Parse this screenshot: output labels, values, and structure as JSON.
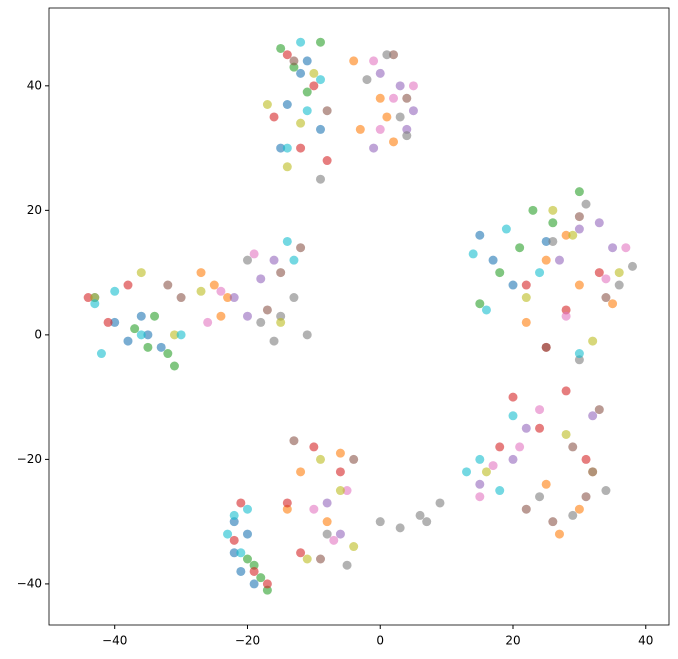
{
  "chart_data": {
    "type": "scatter",
    "xlim": [
      -49.9,
      43.5
    ],
    "ylim": [
      -46.6,
      52.5
    ],
    "xticks": [
      {
        "value": -40,
        "label": "−40"
      },
      {
        "value": -20,
        "label": "−20"
      },
      0,
      20,
      40
    ],
    "yticks": [
      {
        "value": -40,
        "label": "−40"
      },
      {
        "value": -20,
        "label": "−20"
      },
      0,
      20,
      40
    ],
    "grid": false,
    "series": [
      {
        "color": "#1f77b4",
        "x": [
          -14,
          -12,
          -9,
          -15,
          -11,
          -43,
          -40,
          -38,
          -35,
          -36,
          -33,
          -22,
          -21,
          -20,
          -19,
          -22,
          17,
          25,
          15,
          20
        ],
        "values": [
          37,
          42,
          33,
          30,
          44,
          6,
          2,
          -1,
          0,
          3,
          -2,
          -35,
          -38,
          -32,
          -40,
          -30,
          12,
          15,
          16,
          8
        ]
      },
      {
        "color": "#ff7f0e",
        "x": [
          -3,
          0,
          2,
          -4,
          1,
          -25,
          -23,
          -27,
          -24,
          -12,
          -8,
          -14,
          -6,
          25,
          30,
          35,
          22,
          28,
          30,
          27,
          25,
          32
        ],
        "values": [
          33,
          38,
          31,
          44,
          35,
          8,
          6,
          10,
          3,
          -22,
          -30,
          -28,
          -19,
          12,
          8,
          5,
          2,
          16,
          -28,
          -32,
          -24,
          -22
        ]
      },
      {
        "color": "#2ca02c",
        "x": [
          -15,
          -13,
          -11,
          -9,
          -35,
          -32,
          -37,
          -31,
          -34,
          -20,
          -18,
          -17,
          -19,
          23,
          26,
          18,
          30,
          21,
          15
        ],
        "values": [
          46,
          43,
          39,
          47,
          -2,
          -3,
          1,
          -5,
          3,
          -36,
          -39,
          -41,
          -37,
          20,
          18,
          10,
          23,
          14,
          5
        ]
      },
      {
        "color": "#d62728",
        "x": [
          -16,
          -12,
          -10,
          -8,
          -14,
          -44,
          -41,
          -38,
          -21,
          -19,
          -22,
          -17,
          -14,
          -10,
          -6,
          -12,
          22,
          28,
          33,
          25,
          20,
          24,
          28,
          31,
          18
        ],
        "values": [
          35,
          30,
          40,
          28,
          45,
          6,
          2,
          8,
          -27,
          -38,
          -33,
          -40,
          -27,
          -18,
          -22,
          -35,
          8,
          4,
          10,
          -2,
          -10,
          -15,
          -9,
          -20,
          -18
        ]
      },
      {
        "color": "#9467bd",
        "x": [
          0,
          3,
          5,
          -1,
          4,
          -22,
          -18,
          -20,
          -16,
          -8,
          -6,
          30,
          35,
          27,
          33,
          15,
          20,
          22,
          32
        ],
        "values": [
          42,
          40,
          36,
          30,
          33,
          6,
          9,
          3,
          12,
          -27,
          -32,
          17,
          14,
          12,
          18,
          -24,
          -20,
          -15,
          -13
        ]
      },
      {
        "color": "#8c564b",
        "x": [
          -13,
          -8,
          2,
          4,
          -30,
          -32,
          -15,
          -17,
          -12,
          -13,
          -4,
          -9,
          30,
          25,
          34,
          26,
          31,
          29,
          33,
          22
        ],
        "values": [
          44,
          36,
          45,
          38,
          6,
          8,
          10,
          4,
          14,
          -17,
          -20,
          -36,
          19,
          -2,
          6,
          -30,
          -26,
          -18,
          -12,
          -28
        ]
      },
      {
        "color": "#e377c2",
        "x": [
          -1,
          2,
          0,
          5,
          -26,
          -19,
          -24,
          -10,
          -7,
          -5,
          37,
          28,
          34,
          17,
          15,
          21,
          24
        ],
        "values": [
          44,
          38,
          33,
          40,
          2,
          13,
          7,
          -28,
          -33,
          -25,
          14,
          3,
          9,
          -21,
          -26,
          -18,
          -12
        ]
      },
      {
        "color": "#7f7f7f",
        "x": [
          3,
          1,
          4,
          -2,
          -9,
          -15,
          -13,
          -18,
          -11,
          -16,
          -20,
          -5,
          -8,
          0,
          3,
          6,
          9,
          7,
          31,
          36,
          38,
          26,
          34,
          29,
          32,
          24,
          30
        ],
        "values": [
          35,
          45,
          32,
          41,
          25,
          3,
          6,
          2,
          0,
          -1,
          12,
          -37,
          -32,
          -30,
          -31,
          -29,
          -27,
          -30,
          21,
          8,
          11,
          15,
          -25,
          -29,
          -22,
          -26,
          -4
        ]
      },
      {
        "color": "#bcbd22",
        "x": [
          -17,
          -14,
          -10,
          -12,
          -36,
          -31,
          -43,
          -27,
          -15,
          -9,
          -6,
          -11,
          -4,
          22,
          29,
          32,
          26,
          36,
          16,
          28
        ],
        "values": [
          37,
          27,
          42,
          34,
          10,
          0,
          6,
          7,
          2,
          -20,
          -25,
          -36,
          -34,
          6,
          16,
          -1,
          20,
          10,
          -22,
          -16
        ]
      },
      {
        "color": "#17becf",
        "x": [
          -14,
          -12,
          -9,
          -11,
          -40,
          -42,
          -43,
          -36,
          -30,
          -22,
          -20,
          -23,
          -21,
          14,
          19,
          30,
          16,
          24,
          15,
          18,
          13,
          20,
          -14,
          -13
        ],
        "values": [
          30,
          47,
          41,
          36,
          7,
          -3,
          5,
          0,
          0,
          -29,
          -28,
          -32,
          -35,
          13,
          17,
          -3,
          4,
          10,
          -20,
          -25,
          -22,
          -13,
          15,
          12
        ]
      }
    ]
  }
}
